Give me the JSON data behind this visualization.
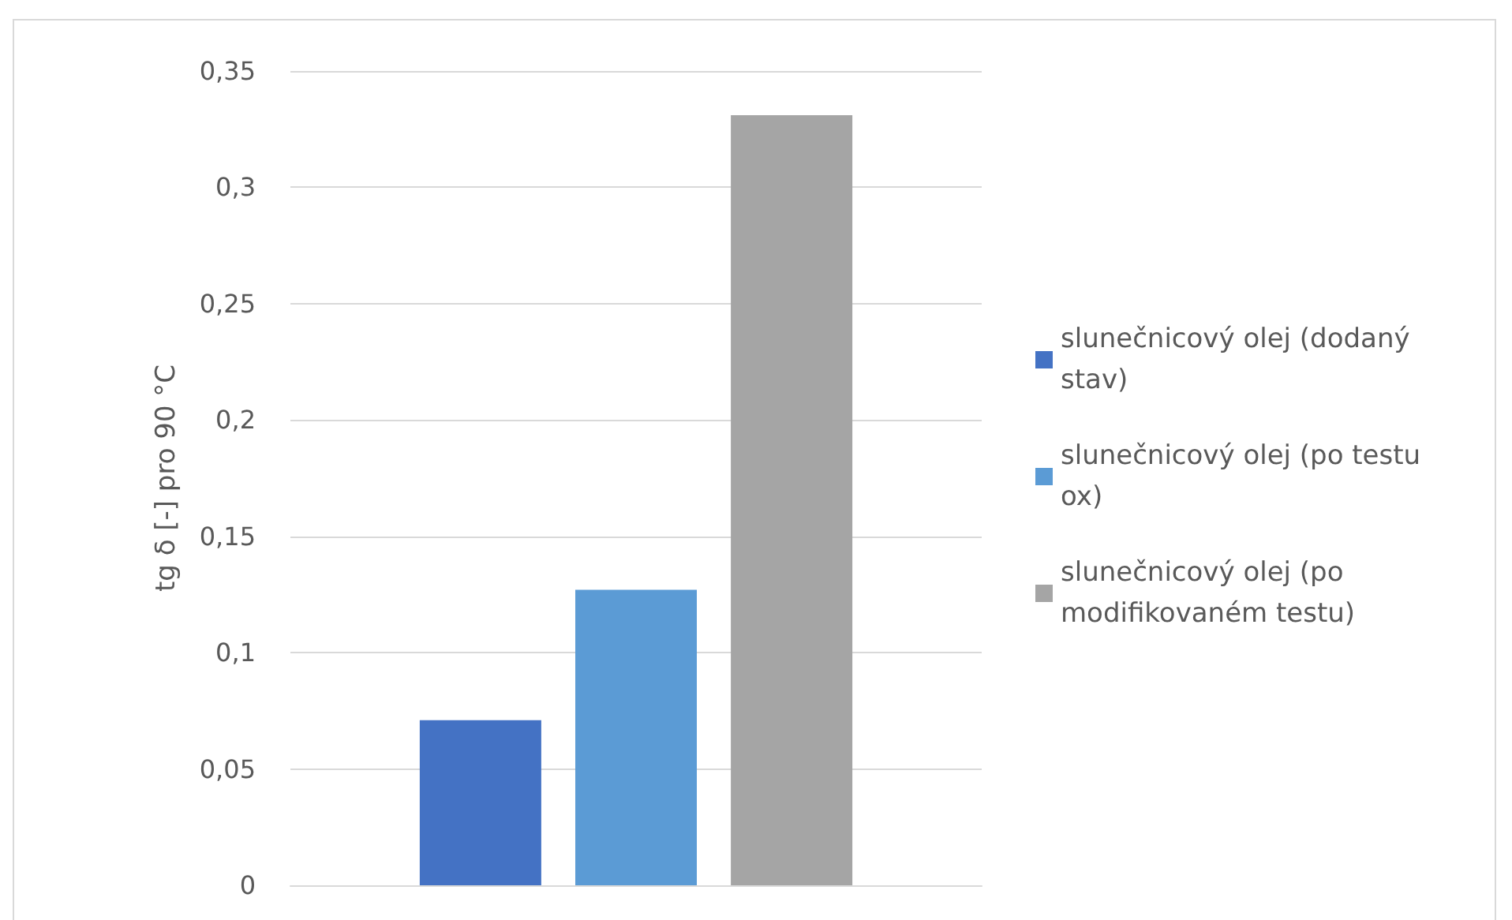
{
  "chart_data": {
    "type": "bar",
    "ylabel": "tg δ [-] pro 90 °C",
    "categories": [
      null
    ],
    "series": [
      {
        "name": "slunečnicový olej (dodaný stav)",
        "color": "#4472c4",
        "values": [
          0.071
        ]
      },
      {
        "name": "slunečnicový olej (po testu ox)",
        "color": "#5b9bd5",
        "values": [
          0.127
        ]
      },
      {
        "name": "slunečnicový olej (po modifikovaném testu)",
        "color": "#a5a5a5",
        "values": [
          0.331
        ]
      }
    ],
    "ylim": [
      0,
      0.35
    ],
    "yticks": [
      {
        "value": 0,
        "label": "0"
      },
      {
        "value": 0.05,
        "label": "0,05"
      },
      {
        "value": 0.1,
        "label": "0,1"
      },
      {
        "value": 0.15,
        "label": "0,15"
      },
      {
        "value": 0.2,
        "label": "0,2"
      },
      {
        "value": 0.25,
        "label": "0,25"
      },
      {
        "value": 0.3,
        "label": "0,3"
      },
      {
        "value": 0.35,
        "label": "0,35"
      }
    ],
    "grid": "y",
    "legend": "right"
  }
}
